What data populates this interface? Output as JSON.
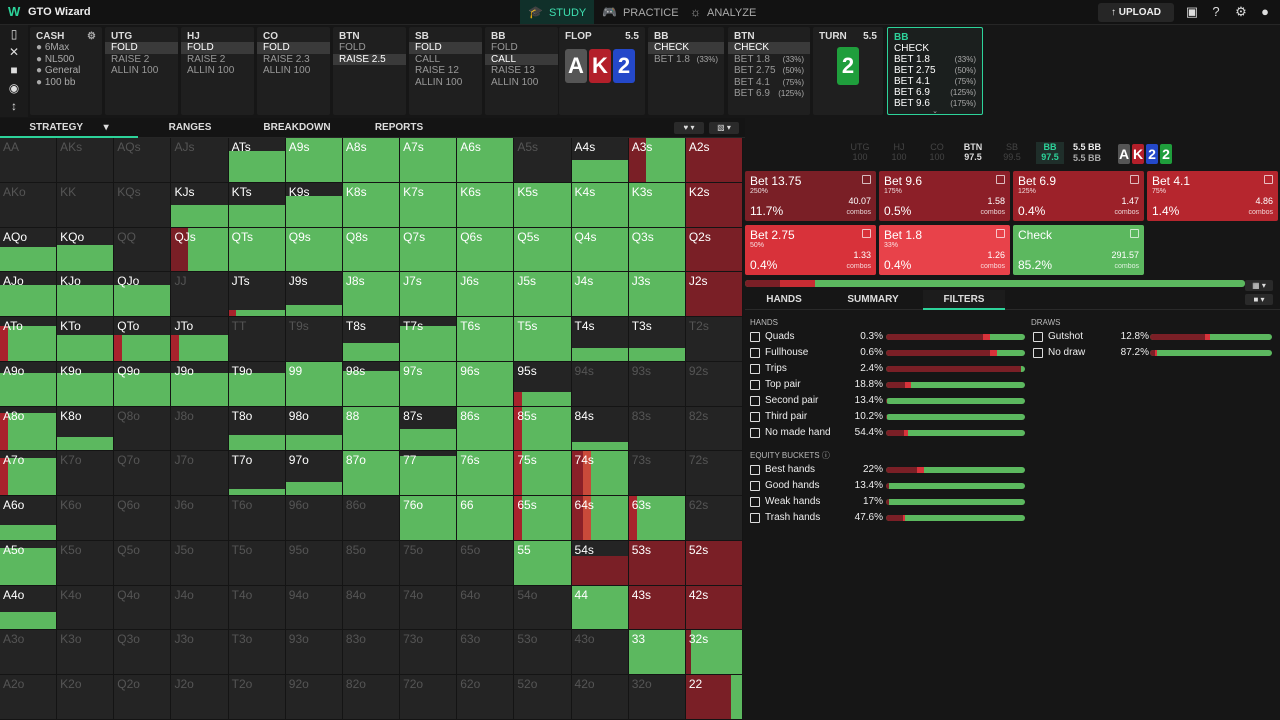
{
  "app": {
    "title": "GTO Wizard"
  },
  "nav": [
    {
      "label": "STUDY",
      "icon": "graduation-cap-icon"
    },
    {
      "label": "PRACTICE",
      "icon": "gamepad-icon"
    },
    {
      "label": "ANALYZE",
      "icon": "lightbulb-icon"
    }
  ],
  "toolbar": {
    "upload": "UPLOAD"
  },
  "colors": {
    "accent": "#2dd39a",
    "check": "#5cb85f",
    "raise_dark": "#7a1f26",
    "raise_mid": "#a8232c",
    "raise_light": "#e8353d",
    "bg": "#161616"
  },
  "cash": {
    "title": "CASH",
    "lines": [
      "6Max",
      "NL500",
      "General",
      "100 bb"
    ]
  },
  "positions": [
    {
      "name": "UTG",
      "actions": [
        "FOLD",
        "RAISE 2",
        "ALLIN 100"
      ],
      "selected": 0
    },
    {
      "name": "HJ",
      "actions": [
        "FOLD",
        "RAISE 2",
        "ALLIN 100"
      ],
      "selected": 0
    },
    {
      "name": "CO",
      "actions": [
        "FOLD",
        "RAISE 2.3",
        "ALLIN 100"
      ],
      "selected": 0
    },
    {
      "name": "BTN",
      "actions": [
        "FOLD",
        "RAISE 2.5"
      ],
      "selected": 1
    },
    {
      "name": "SB",
      "actions": [
        "FOLD",
        "CALL",
        "RAISE 12",
        "ALLIN 100"
      ],
      "selected": 0
    },
    {
      "name": "BB",
      "actions": [
        "FOLD",
        "CALL",
        "RAISE 13",
        "ALLIN 100"
      ],
      "selected": 1
    }
  ],
  "flop": {
    "label": "FLOP",
    "pot": "5.5",
    "cards": [
      {
        "r": "A",
        "c": "#555555"
      },
      {
        "r": "K",
        "c": "#b31f2a"
      },
      {
        "r": "2",
        "c": "#2448c9"
      }
    ]
  },
  "flop_bb": {
    "name": "BB",
    "actions": [
      "CHECK",
      "BET 1.8"
    ],
    "pcts": [
      "",
      "(33%)"
    ],
    "selected": 0
  },
  "flop_btn": {
    "name": "BTN",
    "actions": [
      "CHECK",
      "BET 1.8",
      "BET 2.75",
      "BET 4.1",
      "BET 6.9"
    ],
    "pcts": [
      "",
      "(33%)",
      "(50%)",
      "(75%)",
      "(125%)"
    ],
    "selected": 0
  },
  "turn": {
    "label": "TURN",
    "pot": "5.5",
    "card": {
      "r": "2",
      "c": "#1f9e3c"
    }
  },
  "turn_bb": {
    "name": "BB",
    "actions": [
      "CHECK",
      "BET 1.8",
      "BET 2.75",
      "BET 4.1",
      "BET 6.9",
      "BET 9.6"
    ],
    "pcts": [
      "",
      "(33%)",
      "(50%)",
      "(75%)",
      "(125%)",
      "(175%)"
    ]
  },
  "tabs": [
    "STRATEGY",
    "RANGES",
    "BREAKDOWN",
    "REPORTS"
  ],
  "seats": [
    {
      "n": "UTG",
      "s": "100"
    },
    {
      "n": "HJ",
      "s": "100"
    },
    {
      "n": "CO",
      "s": "100"
    },
    {
      "n": "BTN",
      "s": "97.5"
    },
    {
      "n": "SB",
      "s": "99.5"
    },
    {
      "n": "BB",
      "s": "97.5"
    }
  ],
  "pot_summary": {
    "top": "5.5 BB",
    "bottom": "5.5 BB"
  },
  "board_mini": [
    {
      "r": "A",
      "c": "#555555"
    },
    {
      "r": "K",
      "c": "#b31f2a"
    },
    {
      "r": "2",
      "c": "#2448c9"
    },
    {
      "r": "2",
      "c": "#1f9e3c"
    }
  ],
  "actions": [
    {
      "name": "Bet 13.75",
      "sub": "250%",
      "freq": "11.7%",
      "ev": "40.07",
      "combos": "combos",
      "color": "#7a1f26"
    },
    {
      "name": "Bet 9.6",
      "sub": "175%",
      "freq": "0.5%",
      "ev": "1.58",
      "combos": "combos",
      "color": "#8c1f28"
    },
    {
      "name": "Bet 6.9",
      "sub": "125%",
      "freq": "0.4%",
      "ev": "1.47",
      "combos": "combos",
      "color": "#9c2129"
    },
    {
      "name": "Bet 4.1",
      "sub": "75%",
      "freq": "1.4%",
      "ev": "4.86",
      "combos": "combos",
      "color": "#b6262e"
    },
    {
      "name": "Bet 2.75",
      "sub": "50%",
      "freq": "0.4%",
      "ev": "1.33",
      "combos": "combos",
      "color": "#d8323a"
    },
    {
      "name": "Bet 1.8",
      "sub": "33%",
      "freq": "0.4%",
      "ev": "1.26",
      "combos": "combos",
      "color": "#e8424a"
    },
    {
      "name": "Check",
      "sub": "",
      "freq": "85.2%",
      "ev": "291.57",
      "combos": "combos",
      "color": "#5cb85f"
    }
  ],
  "tabs2": [
    "HANDS",
    "SUMMARY",
    "FILTERS"
  ],
  "filters": {
    "hands_title": "HANDS",
    "hands": [
      {
        "l": "Quads",
        "p": "0.3%",
        "f": [
          0.7,
          0.05,
          0.02
        ]
      },
      {
        "l": "Fullhouse",
        "p": "0.6%",
        "f": [
          0.75,
          0.05,
          0.02
        ]
      },
      {
        "l": "Trips",
        "p": "2.4%",
        "f": [
          0.97,
          0,
          0
        ]
      },
      {
        "l": "Top pair",
        "p": "18.8%",
        "f": [
          0.14,
          0.04,
          0
        ]
      },
      {
        "l": "Second pair",
        "p": "13.4%",
        "f": [
          0.01,
          0,
          0
        ]
      },
      {
        "l": "Third pair",
        "p": "10.2%",
        "f": [
          0.01,
          0,
          0
        ]
      },
      {
        "l": "No made hand",
        "p": "54.4%",
        "f": [
          0.13,
          0.03,
          0
        ]
      }
    ],
    "equity_title": "EQUITY BUCKETS",
    "equity": [
      {
        "l": "Best hands",
        "p": "22%",
        "f": [
          0.22,
          0.05,
          0
        ]
      },
      {
        "l": "Good hands",
        "p": "13.4%",
        "f": [
          0.02,
          0,
          0
        ]
      },
      {
        "l": "Weak hands",
        "p": "17%",
        "f": [
          0.02,
          0,
          0
        ]
      },
      {
        "l": "Trash hands",
        "p": "47.6%",
        "f": [
          0.12,
          0.02,
          0
        ]
      }
    ],
    "draws_title": "DRAWS",
    "draws": [
      {
        "l": "Gutshot",
        "p": "12.8%",
        "f": [
          0.45,
          0.04,
          0
        ]
      },
      {
        "l": "No draw",
        "p": "87.2%",
        "f": [
          0.04,
          0.02,
          0
        ]
      }
    ]
  },
  "grid": [
    [
      "AA",
      "AKs",
      "AQs",
      "AJs",
      "ATs",
      "A9s",
      "A8s",
      "A7s",
      "A6s",
      "A5s",
      "A4s",
      "A3s",
      "A2s"
    ],
    [
      "AKo",
      "KK",
      "KQs",
      "KJs",
      "KTs",
      "K9s",
      "K8s",
      "K7s",
      "K6s",
      "K5s",
      "K4s",
      "K3s",
      "K2s"
    ],
    [
      "AQo",
      "KQo",
      "QQ",
      "QJs",
      "QTs",
      "Q9s",
      "Q8s",
      "Q7s",
      "Q6s",
      "Q5s",
      "Q4s",
      "Q3s",
      "Q2s"
    ],
    [
      "AJo",
      "KJo",
      "QJo",
      "JJ",
      "JTs",
      "J9s",
      "J8s",
      "J7s",
      "J6s",
      "J5s",
      "J4s",
      "J3s",
      "J2s"
    ],
    [
      "ATo",
      "KTo",
      "QTo",
      "JTo",
      "TT",
      "T9s",
      "T8s",
      "T7s",
      "T6s",
      "T5s",
      "T4s",
      "T3s",
      "T2s"
    ],
    [
      "A9o",
      "K9o",
      "Q9o",
      "J9o",
      "T9o",
      "99",
      "98s",
      "97s",
      "96s",
      "95s",
      "94s",
      "93s",
      "92s"
    ],
    [
      "A8o",
      "K8o",
      "Q8o",
      "J8o",
      "T8o",
      "98o",
      "88",
      "87s",
      "86s",
      "85s",
      "84s",
      "83s",
      "82s"
    ],
    [
      "A7o",
      "K7o",
      "Q7o",
      "J7o",
      "T7o",
      "97o",
      "87o",
      "77",
      "76s",
      "75s",
      "74s",
      "73s",
      "72s"
    ],
    [
      "A6o",
      "K6o",
      "Q6o",
      "J6o",
      "T6o",
      "96o",
      "86o",
      "76o",
      "66",
      "65s",
      "64s",
      "63s",
      "62s"
    ],
    [
      "A5o",
      "K5o",
      "Q5o",
      "J5o",
      "T5o",
      "95o",
      "85o",
      "75o",
      "65o",
      "55",
      "54s",
      "53s",
      "52s"
    ],
    [
      "A4o",
      "K4o",
      "Q4o",
      "J4o",
      "T4o",
      "94o",
      "84o",
      "74o",
      "64o",
      "54o",
      "44",
      "43s",
      "42s"
    ],
    [
      "A3o",
      "K3o",
      "Q3o",
      "J3o",
      "T3o",
      "93o",
      "83o",
      "73o",
      "63o",
      "53o",
      "43o",
      "33",
      "32s"
    ],
    [
      "A2o",
      "K2o",
      "Q2o",
      "J2o",
      "T2o",
      "92o",
      "82o",
      "72o",
      "62o",
      "52o",
      "42o",
      "32o",
      "22"
    ]
  ],
  "grid_freq": [
    [
      "x",
      "x",
      "x",
      "x",
      "g70",
      "g100",
      "g100",
      "g100",
      "g100",
      "x",
      "g50",
      "m",
      "d"
    ],
    [
      "x",
      "x",
      "x",
      "g50",
      "g50",
      "g70",
      "g100",
      "g100",
      "g100",
      "g100",
      "g100",
      "g100",
      "d"
    ],
    [
      "g55",
      "g60",
      "x",
      "m",
      "g100",
      "g100",
      "g100",
      "g100",
      "g100",
      "g100",
      "g100",
      "g100",
      "d"
    ],
    [
      "g70",
      "g70",
      "g70",
      "x",
      "g15r",
      "g25",
      "g100",
      "g100",
      "g100",
      "g100",
      "g100",
      "g100",
      "d"
    ],
    [
      "g80r",
      "g60",
      "g60r",
      "g60r",
      "x",
      "x",
      "g40",
      "g80",
      "g100",
      "g100",
      "g30",
      "g30",
      "x"
    ],
    [
      "g75",
      "g75",
      "g75",
      "g75",
      "g75",
      "g100",
      "g80",
      "g100",
      "g100",
      "g30r",
      "x",
      "x",
      "x"
    ],
    [
      "g85r",
      "g30",
      "x",
      "x",
      "g35",
      "g35",
      "g100",
      "g50",
      "g100",
      "g100r",
      "g20",
      "x",
      "x"
    ],
    [
      "g85r",
      "x",
      "x",
      "x",
      "g15",
      "g30",
      "g100",
      "g90",
      "g100",
      "g100r",
      "m2",
      "x",
      "x"
    ],
    [
      "g35",
      "x",
      "x",
      "x",
      "x",
      "x",
      "x",
      "g100",
      "g100",
      "g100r",
      "m2",
      "g100r",
      "x"
    ],
    [
      "g85",
      "x",
      "x",
      "x",
      "x",
      "x",
      "x",
      "x",
      "x",
      "g100",
      "ds",
      "d",
      "d"
    ],
    [
      "g40",
      "x",
      "x",
      "x",
      "x",
      "x",
      "x",
      "x",
      "x",
      "x",
      "g100",
      "d",
      "d"
    ],
    [
      "x",
      "x",
      "x",
      "x",
      "x",
      "x",
      "x",
      "x",
      "x",
      "x",
      "x",
      "g100",
      "g100d"
    ],
    [
      "x",
      "x",
      "x",
      "x",
      "x",
      "x",
      "x",
      "x",
      "x",
      "x",
      "x",
      "x",
      "dg"
    ]
  ]
}
